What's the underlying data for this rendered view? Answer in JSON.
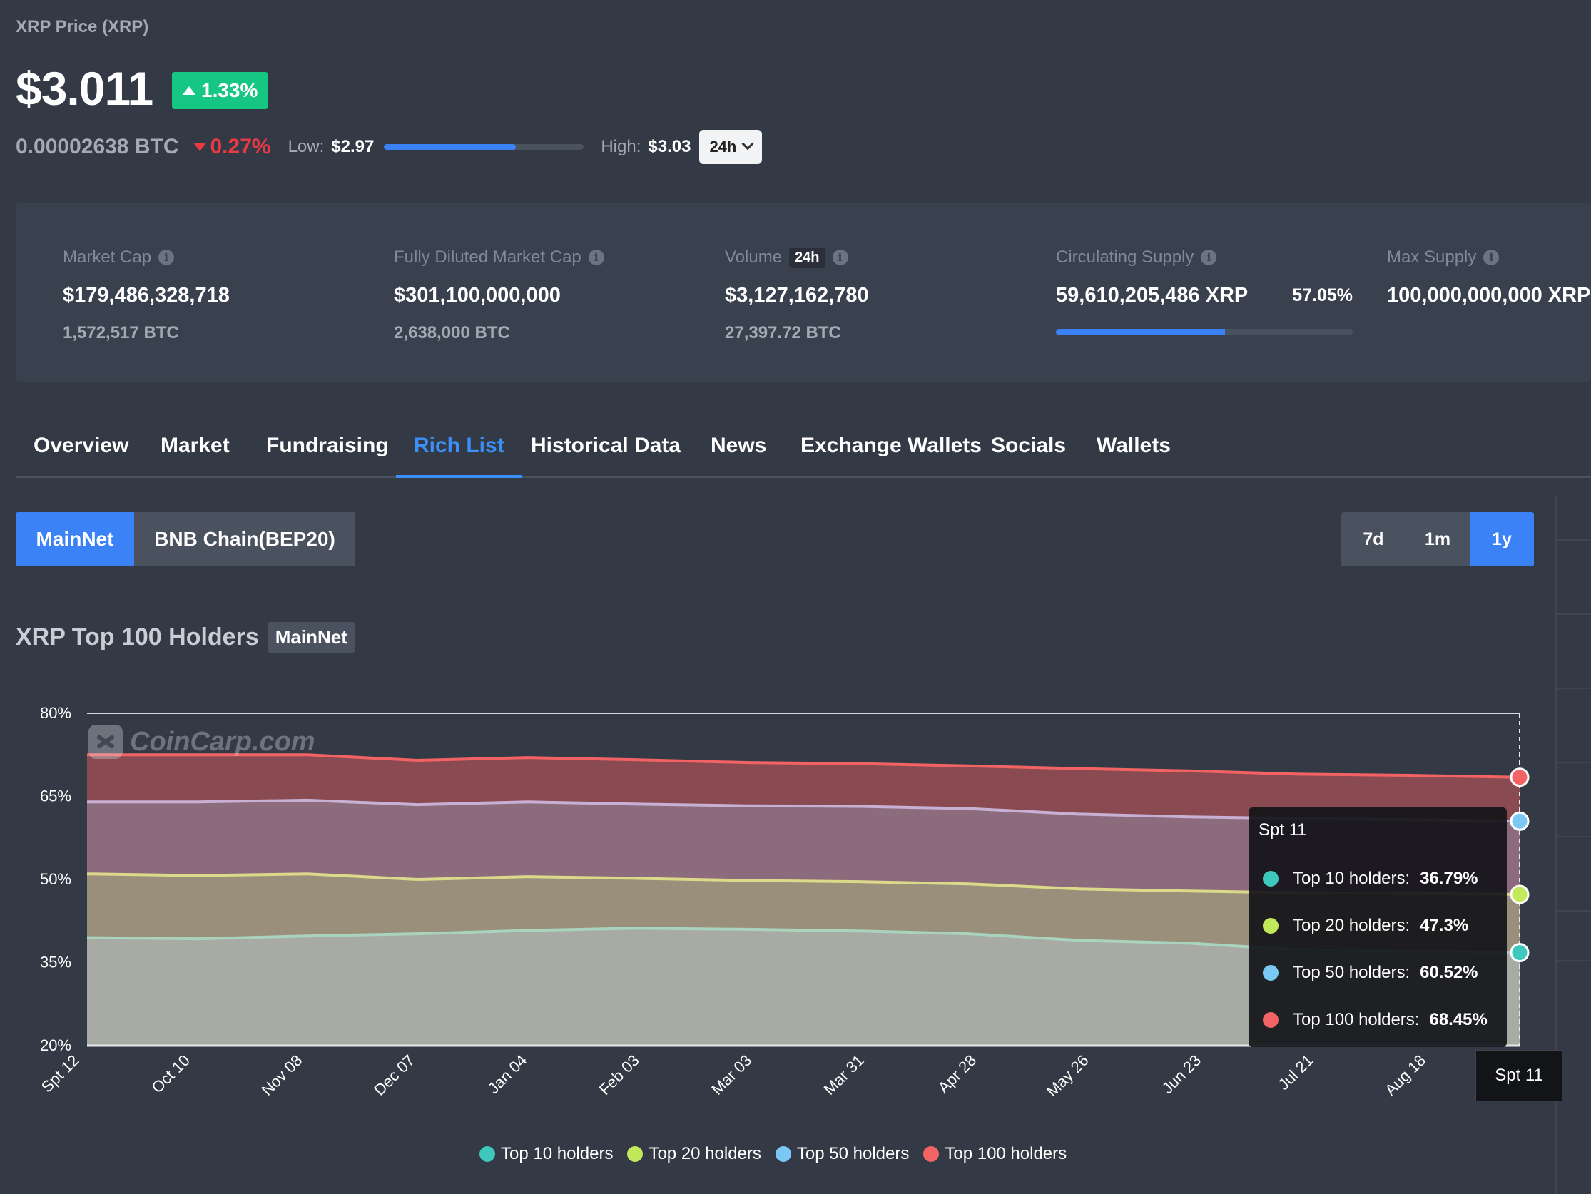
{
  "header": {
    "label": "XRP Price (XRP)",
    "price": "$3.011",
    "change_pct": "1.33%",
    "btc_price": "0.00002638 BTC",
    "btc_change_pct": "0.27%",
    "low_label": "Low:",
    "low_value": "$2.97",
    "high_label": "High:",
    "high_value": "$3.03",
    "range_position": 0.66,
    "period": "24h"
  },
  "stats": {
    "market_cap": {
      "label": "Market Cap",
      "value": "$179,486,328,718",
      "sub": "1,572,517 BTC"
    },
    "fdmc": {
      "label": "Fully Diluted Market Cap",
      "value": "$301,100,000,000",
      "sub": "2,638,000 BTC"
    },
    "volume": {
      "label": "Volume",
      "badge": "24h",
      "value": "$3,127,162,780",
      "sub": "27,397.72 BTC"
    },
    "circulating": {
      "label": "Circulating Supply",
      "value": "59,610,205,486 XRP",
      "pct": "57.05%",
      "fraction": 0.5705
    },
    "max_supply": {
      "label": "Max Supply",
      "value": "100,000,000,000 XRP"
    }
  },
  "tabs": [
    "Overview",
    "Market",
    "Fundraising",
    "Rich List",
    "Historical Data",
    "News",
    "Exchange Wallets",
    "Socials",
    "Wallets"
  ],
  "active_tab": "Rich List",
  "network": {
    "mainnet": "MainNet",
    "bnb": "BNB Chain(BEP20)"
  },
  "ranges": {
    "r7d": "7d",
    "r1m": "1m",
    "r1y": "1y",
    "active": "1y"
  },
  "chart_title": "XRP Top 100 Holders",
  "chart_badge": "MainNet",
  "watermark": "CoinCarp.com",
  "tooltip": {
    "date": "Spt 11",
    "rows": [
      {
        "label": "Top 10 holders:",
        "value": "36.79%",
        "color": "#3ec7bd"
      },
      {
        "label": "Top 20 holders:",
        "value": "47.3%",
        "color": "#c2e95a"
      },
      {
        "label": "Top 50 holders:",
        "value": "60.52%",
        "color": "#7cc8f5"
      },
      {
        "label": "Top 100 holders:",
        "value": "68.45%",
        "color": "#f36364"
      }
    ]
  },
  "axis_flag": "Spt 11",
  "chart_data": {
    "type": "area",
    "x": [
      "Spt 12",
      "Oct 10",
      "Nov 08",
      "Dec 07",
      "Jan 04",
      "Feb 03",
      "Mar 03",
      "Mar 31",
      "Apr 28",
      "May 26",
      "Jun 23",
      "Jul 21",
      "Aug 18",
      "Spt 11"
    ],
    "y_ticks": [
      "80%",
      "65%",
      "50%",
      "35%",
      "20%"
    ],
    "ylim": [
      20,
      80
    ],
    "grid": true,
    "legend_position": "bottom",
    "series": [
      {
        "name": "Top 100 holders",
        "color": "#f36364",
        "values": [
          72.5,
          72.5,
          72.5,
          71.5,
          72,
          71.6,
          71.1,
          70.9,
          70.5,
          70,
          69.6,
          69,
          68.8,
          68.45
        ]
      },
      {
        "name": "Top 50 holders",
        "color": "#c7b0d4",
        "values": [
          64,
          64,
          64.3,
          63.5,
          64,
          63.6,
          63.3,
          63.2,
          62.8,
          61.8,
          61.3,
          61,
          60.8,
          60.52
        ]
      },
      {
        "name": "Top 20 holders",
        "color": "#ddd98a",
        "values": [
          51,
          50.7,
          51,
          50,
          50.5,
          50.2,
          49.8,
          49.6,
          49.2,
          48.3,
          47.9,
          47.6,
          47.5,
          47.3
        ]
      },
      {
        "name": "Top 10 holders",
        "color": "#a9d3bc",
        "values": [
          39.5,
          39.3,
          39.8,
          40.2,
          40.8,
          41.2,
          41,
          40.7,
          40.2,
          39,
          38.5,
          37.3,
          37,
          36.79
        ]
      }
    ],
    "legend": [
      {
        "name": "Top 10 holders",
        "color": "#3ec7bd"
      },
      {
        "name": "Top 20 holders",
        "color": "#c2e95a"
      },
      {
        "name": "Top 50 holders",
        "color": "#7cc8f5"
      },
      {
        "name": "Top 100 holders",
        "color": "#f36364"
      }
    ]
  }
}
